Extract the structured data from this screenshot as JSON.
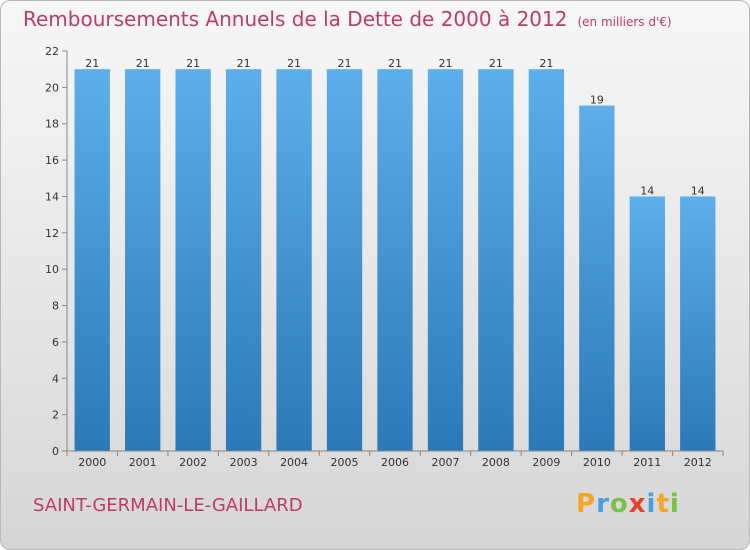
{
  "header": {
    "title": "Remboursements Annuels de la Dette de 2000 à 2012",
    "subtitle": "(en milliers d'€)"
  },
  "footer": {
    "commune": "SAINT-GERMAIN-LE-GAILLARD",
    "logo": [
      "P",
      "r",
      "o",
      "x",
      "i",
      "t",
      "i"
    ],
    "logo_colors": [
      "#f5a623",
      "#4a9ee0",
      "#7ac142",
      "#e8412c",
      "#4a9ee0",
      "#f5a623",
      "#7ac142"
    ]
  },
  "chart_data": {
    "type": "bar",
    "categories": [
      "2000",
      "2001",
      "2002",
      "2003",
      "2004",
      "2005",
      "2006",
      "2007",
      "2008",
      "2009",
      "2010",
      "2011",
      "2012"
    ],
    "values": [
      21,
      21,
      21,
      21,
      21,
      21,
      21,
      21,
      21,
      21,
      19,
      14,
      14
    ],
    "ylim": [
      0,
      22
    ],
    "yticks": [
      0,
      2,
      4,
      6,
      8,
      10,
      12,
      14,
      16,
      18,
      20,
      22
    ],
    "grid": false,
    "bar_color_top": "#5daeea",
    "bar_color_bottom": "#2b79b8"
  }
}
